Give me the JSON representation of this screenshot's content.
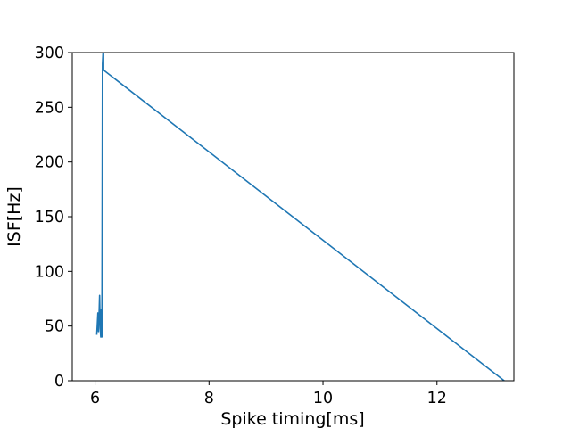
{
  "chart_data": {
    "type": "line",
    "title": "",
    "xlabel": "Spike timing[ms]",
    "ylabel": "ISF[Hz]",
    "xlim": [
      5.6,
      13.35
    ],
    "ylim": [
      0,
      300
    ],
    "xticks": [
      6,
      8,
      10,
      12
    ],
    "yticks": [
      0,
      50,
      100,
      150,
      200,
      250,
      300
    ],
    "grid": false,
    "line_color": "#1f77b4",
    "series": [
      {
        "x": [
          6.03,
          6.05,
          6.06,
          6.07,
          6.08,
          6.09,
          6.1,
          6.11,
          6.12,
          6.13,
          6.14,
          6.14,
          6.15,
          6.15,
          13.18
        ],
        "y": [
          42,
          62,
          45,
          60,
          78,
          48,
          40,
          65,
          40,
          290,
          300,
          285,
          300,
          284,
          0
        ]
      }
    ]
  }
}
